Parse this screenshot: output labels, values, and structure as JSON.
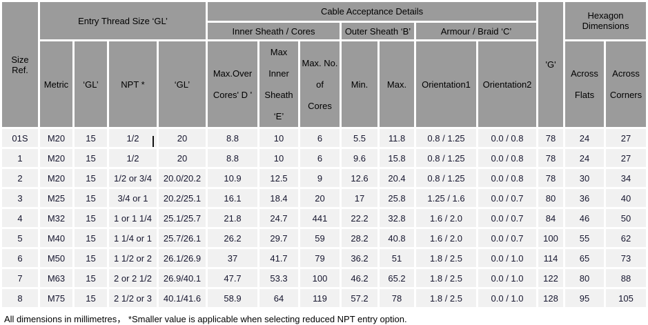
{
  "table": {
    "groups": {
      "entry_thread": "Entry Thread Size ‘GL’",
      "cable_acceptance": "Cable Acceptance Details",
      "inner_sheath": "Inner Sheath / Cores",
      "outer_sheath": "Outer Sheath ‘B’",
      "armour_braid": "Armour / Braid ‘C’",
      "hexagon": "Hexagon Dimensions"
    },
    "columns": {
      "size_ref": "Size Ref.",
      "metric": "Metric",
      "gl1": "‘GL’",
      "npt": "NPT *",
      "gl2": "‘GL’",
      "max_over_cores": "Max.Over\nCores' D '",
      "max_inner_sheath": "Max Inner\nSheath ‘E’",
      "max_no_cores": "Max. No. of\nCores",
      "min": "Min.",
      "max": "Max.",
      "orientation1": "Orientation1",
      "orientation2": "Orientation2",
      "g": "'G'",
      "across_flats": "Across\nFlats",
      "across_corners": "Across\nCorners"
    },
    "column_keys": [
      "size_ref",
      "metric",
      "gl1",
      "npt",
      "gl2",
      "max_over_cores",
      "max_inner_sheath",
      "max_no_cores",
      "min",
      "max",
      "orientation1",
      "orientation2",
      "g",
      "across_flats",
      "across_corners"
    ],
    "rows": [
      [
        "01S",
        "M20",
        "15",
        "1/2",
        "20",
        "8.8",
        "10",
        "6",
        "5.5",
        "11.8",
        "0.8 / 1.25",
        "0.0 / 0.8",
        "78",
        "24",
        "27"
      ],
      [
        "1",
        "M20",
        "15",
        "1/2",
        "20",
        "8.8",
        "10",
        "6",
        "9.6",
        "15.8",
        "0.8 / 1.25",
        "0.0 / 0.8",
        "78",
        "24",
        "27"
      ],
      [
        "2",
        "M20",
        "15",
        "1/2 or 3/4",
        "20.0/20.2",
        "10.9",
        "12.5",
        "9",
        "12.6",
        "20.4",
        "0.8 / 1.25",
        "0.0 / 0.8",
        "78",
        "30",
        "34"
      ],
      [
        "3",
        "M25",
        "15",
        "3/4 or 1",
        "20.2/25.1",
        "16.1",
        "18.4",
        "20",
        "17",
        "25.8",
        "1.25 / 1.6",
        "0.0 / 0.7",
        "80",
        "36",
        "40"
      ],
      [
        "4",
        "M32",
        "15",
        "1 or 1 1/4",
        "25.1/25.7",
        "21.8",
        "24.7",
        "441",
        "22.2",
        "32.8",
        "1.6 / 2.0",
        "0.0 / 0.7",
        "84",
        "46",
        "50"
      ],
      [
        "5",
        "M40",
        "15",
        "1 1/4 or 1",
        "25.7/26.1",
        "26.2",
        "29.7",
        "59",
        "28.2",
        "40.8",
        "1.6 / 2.0",
        "0.0 / 0.7",
        "100",
        "55",
        "62"
      ],
      [
        "6",
        "M50",
        "15",
        "1 1/2 or 2",
        "26.1/26.9",
        "37",
        "41.7",
        "79",
        "36.2",
        "51",
        "1.8 / 2.5",
        "0.0 / 1.0",
        "114",
        "65",
        "73"
      ],
      [
        "7",
        "M63",
        "15",
        "2 or 2 1/2",
        "26.9/40.1",
        "47.7",
        "53.3",
        "100",
        "46.2",
        "65.2",
        "1.8 / 2.5",
        "0.0 / 1.0",
        "122",
        "80",
        "88"
      ],
      [
        "8",
        "M75",
        "15",
        "2 1/2 or 3",
        "40.1/41.6",
        "58.9",
        "64",
        "119",
        "57.2",
        "78",
        "1.8 / 2.5",
        "0.0 / 1.0",
        "128",
        "95",
        "105"
      ]
    ]
  },
  "footer": {
    "note": "All dimensions in millimetres，  *Smaller value is applicable when selecting reduced NPT entry option."
  },
  "colors": {
    "header_bg": "#9b9b9b",
    "row_bg": "#f1f1f1",
    "header_text": "#000000",
    "data_text": "#15152e",
    "page_bg": "#ffffff"
  }
}
